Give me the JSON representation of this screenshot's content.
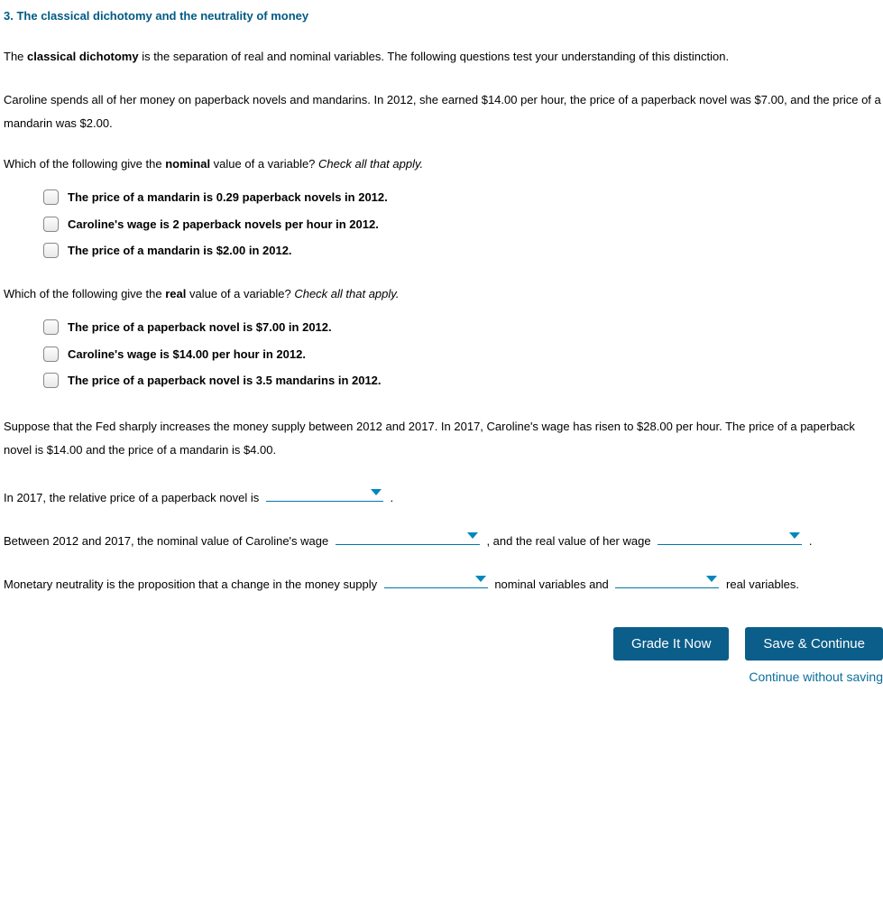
{
  "question": {
    "number": "3.",
    "title": "The classical dichotomy and the neutrality of money"
  },
  "intro": {
    "prefix": "The ",
    "bold_term": "classical dichotomy",
    "suffix": " is the separation of real and nominal variables. The following questions test your understanding of this distinction."
  },
  "scenario": "Caroline spends all of her money on paperback novels and mandarins. In 2012, she earned $14.00 per hour, the price of a paperback novel was $7.00, and the price of a mandarin was $2.00.",
  "q1": {
    "prompt_pre": "Which of the following give the ",
    "prompt_bold": "nominal",
    "prompt_post": " value of a variable? ",
    "prompt_hint": "Check all that apply.",
    "options": [
      "The price of a mandarin is 0.29 paperback novels in 2012.",
      "Caroline's wage is 2 paperback novels per hour in 2012.",
      "The price of a mandarin is $2.00 in 2012."
    ]
  },
  "q2": {
    "prompt_pre": "Which of the following give the ",
    "prompt_bold": "real",
    "prompt_post": " value of a variable? ",
    "prompt_hint": "Check all that apply.",
    "options": [
      "The price of a paperback novel is $7.00 in 2012.",
      "Caroline's wage is $14.00 per hour in 2012.",
      "The price of a paperback novel is 3.5 mandarins in 2012."
    ]
  },
  "scenario2": "Suppose that the Fed sharply increases the money supply between 2012 and 2017. In 2017, Caroline's wage has risen to $28.00 per hour. The price of a paperback novel is $14.00 and the price of a mandarin is $4.00.",
  "fill1": {
    "pre": "In 2017, the relative price of a paperback novel is ",
    "post": " ."
  },
  "fill2": {
    "pre": "Between 2012 and 2017, the nominal value of Caroline's wage ",
    "mid": " , and the real value of her wage ",
    "post": " ."
  },
  "fill3": {
    "pre": "Monetary neutrality is the proposition that a change in the money supply ",
    "mid": " nominal variables and ",
    "post": " real variables."
  },
  "buttons": {
    "grade": "Grade It Now",
    "save": "Save & Continue",
    "continue_link": "Continue without saving"
  }
}
